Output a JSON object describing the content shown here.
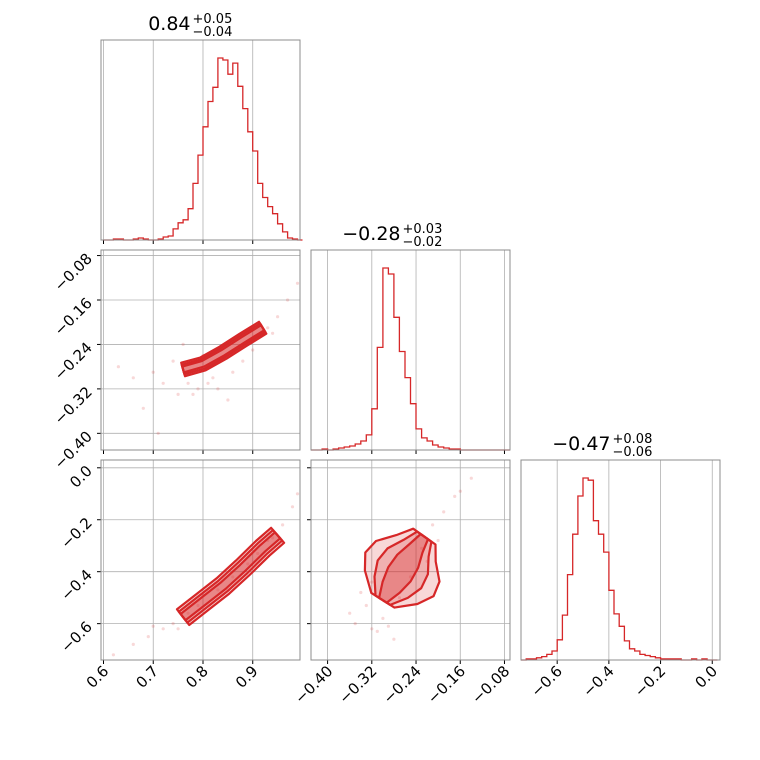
{
  "chart_data": {
    "type": "corner",
    "color": "#d62728",
    "parameters": [
      {
        "title_value": "0.84",
        "title_plus": "+0.05",
        "title_minus": "−0.04",
        "range": [
          0.595,
          0.995
        ],
        "ticks": [
          0.6,
          0.7,
          0.8,
          0.9
        ],
        "tick_labels": [
          "0.6",
          "0.7",
          "0.8",
          "0.9"
        ]
      },
      {
        "title_value": "−0.28",
        "title_plus": "+0.03",
        "title_minus": "−0.02",
        "range": [
          -0.43,
          -0.07
        ],
        "ticks": [
          -0.4,
          -0.32,
          -0.24,
          -0.16,
          -0.08
        ],
        "tick_labels": [
          "−0.40",
          "−0.32",
          "−0.24",
          "−0.16",
          "−0.08"
        ]
      },
      {
        "title_value": "−0.47",
        "title_plus": "+0.08",
        "title_minus": "−0.06",
        "range": [
          -0.74,
          0.03
        ],
        "ticks": [
          -0.6,
          -0.4,
          -0.2,
          0.0
        ],
        "tick_labels": [
          "−0.6",
          "−0.4",
          "−0.2",
          "0.0"
        ]
      }
    ],
    "histograms": [
      {
        "param": 0,
        "bin_edges": [
          0.6,
          0.61,
          0.62,
          0.63,
          0.64,
          0.65,
          0.66,
          0.67,
          0.68,
          0.69,
          0.7,
          0.71,
          0.72,
          0.73,
          0.74,
          0.75,
          0.76,
          0.77,
          0.78,
          0.79,
          0.8,
          0.81,
          0.82,
          0.83,
          0.84,
          0.85,
          0.86,
          0.87,
          0.88,
          0.89,
          0.9,
          0.91,
          0.92,
          0.93,
          0.94,
          0.95,
          0.96,
          0.97,
          0.98,
          0.99,
          1.0
        ],
        "counts": [
          0,
          0,
          1,
          1,
          0,
          0,
          1,
          2,
          1,
          0,
          0,
          1,
          3,
          4,
          11,
          17,
          20,
          31,
          56,
          84,
          112,
          137,
          151,
          180,
          178,
          164,
          175,
          152,
          130,
          107,
          88,
          56,
          42,
          33,
          26,
          16,
          8,
          2,
          1,
          0
        ]
      },
      {
        "param": 1,
        "bin_edges": [
          -0.43,
          -0.42,
          -0.41,
          -0.4,
          -0.39,
          -0.38,
          -0.37,
          -0.36,
          -0.35,
          -0.34,
          -0.33,
          -0.32,
          -0.31,
          -0.3,
          -0.29,
          -0.28,
          -0.27,
          -0.26,
          -0.25,
          -0.24,
          -0.23,
          -0.22,
          -0.21,
          -0.2,
          -0.19,
          -0.18,
          -0.17,
          -0.16,
          -0.15,
          -0.14,
          -0.13,
          -0.12,
          -0.11,
          -0.1,
          -0.09,
          -0.08,
          -0.07
        ],
        "counts": [
          0,
          0,
          1,
          0,
          1,
          2,
          3,
          4,
          6,
          9,
          15,
          41,
          102,
          181,
          175,
          132,
          98,
          72,
          46,
          21,
          12,
          9,
          5,
          3,
          2,
          1,
          1,
          0,
          0,
          0,
          0,
          0,
          0,
          0,
          0,
          0
        ]
      },
      {
        "param": 2,
        "bin_edges": [
          -0.74,
          -0.72,
          -0.7,
          -0.68,
          -0.66,
          -0.64,
          -0.62,
          -0.6,
          -0.58,
          -0.56,
          -0.54,
          -0.52,
          -0.5,
          -0.48,
          -0.46,
          -0.44,
          -0.42,
          -0.4,
          -0.38,
          -0.36,
          -0.34,
          -0.32,
          -0.3,
          -0.28,
          -0.26,
          -0.24,
          -0.22,
          -0.2,
          -0.18,
          -0.16,
          -0.14,
          -0.12,
          -0.1,
          -0.08,
          -0.06,
          -0.04,
          -0.02,
          0.0,
          0.02
        ],
        "counts": [
          0,
          1,
          1,
          2,
          3,
          5,
          8,
          18,
          40,
          76,
          112,
          146,
          162,
          160,
          124,
          112,
          96,
          62,
          41,
          30,
          17,
          10,
          8,
          5,
          4,
          3,
          2,
          1,
          1,
          1,
          1,
          0,
          0,
          1,
          0,
          1,
          0,
          0
        ]
      }
    ],
    "pairs": [
      {
        "x_param": 0,
        "y_param": 1,
        "ridge": [
          [
            0.76,
            -0.285
          ],
          [
            0.8,
            -0.275
          ],
          [
            0.84,
            -0.255
          ],
          [
            0.88,
            -0.232
          ],
          [
            0.92,
            -0.21
          ]
        ],
        "levels": [
          {
            "name": "outer",
            "width": 0.014
          },
          {
            "name": "middle",
            "width": 0.01
          },
          {
            "name": "inner",
            "width": 0.006
          }
        ],
        "scatter": [
          [
            0.63,
            -0.28
          ],
          [
            0.66,
            -0.3
          ],
          [
            0.7,
            -0.29
          ],
          [
            0.72,
            -0.31
          ],
          [
            0.74,
            -0.27
          ],
          [
            0.75,
            -0.33
          ],
          [
            0.77,
            -0.31
          ],
          [
            0.78,
            -0.33
          ],
          [
            0.79,
            -0.32
          ],
          [
            0.81,
            -0.31
          ],
          [
            0.82,
            -0.3
          ],
          [
            0.83,
            -0.32
          ],
          [
            0.86,
            -0.29
          ],
          [
            0.88,
            -0.27
          ],
          [
            0.9,
            -0.25
          ],
          [
            0.93,
            -0.21
          ],
          [
            0.95,
            -0.19
          ],
          [
            0.97,
            -0.16
          ],
          [
            0.99,
            -0.13
          ],
          [
            0.68,
            -0.355
          ],
          [
            0.71,
            -0.4
          ],
          [
            0.85,
            -0.34
          ],
          [
            0.76,
            -0.24
          ],
          [
            0.8,
            -0.26
          ],
          [
            0.94,
            -0.22
          ]
        ]
      },
      {
        "x_param": 0,
        "y_param": 2,
        "ridge": [
          [
            0.76,
            -0.575
          ],
          [
            0.8,
            -0.515
          ],
          [
            0.84,
            -0.455
          ],
          [
            0.88,
            -0.385
          ],
          [
            0.92,
            -0.31
          ],
          [
            0.95,
            -0.26
          ]
        ],
        "levels": [
          {
            "name": "outer",
            "width": 0.02
          },
          {
            "name": "middle",
            "width": 0.014
          },
          {
            "name": "inner",
            "width": 0.008
          }
        ],
        "scatter": [
          [
            0.62,
            -0.72
          ],
          [
            0.66,
            -0.68
          ],
          [
            0.69,
            -0.65
          ],
          [
            0.72,
            -0.62
          ],
          [
            0.74,
            -0.6
          ],
          [
            0.77,
            -0.56
          ],
          [
            0.79,
            -0.53
          ],
          [
            0.83,
            -0.47
          ],
          [
            0.86,
            -0.42
          ],
          [
            0.89,
            -0.37
          ],
          [
            0.91,
            -0.33
          ],
          [
            0.94,
            -0.27
          ],
          [
            0.96,
            -0.22
          ],
          [
            0.98,
            -0.15
          ],
          [
            0.99,
            -0.1
          ],
          [
            0.7,
            -0.61
          ],
          [
            0.75,
            -0.62
          ],
          [
            0.8,
            -0.49
          ],
          [
            0.85,
            -0.47
          ],
          [
            0.93,
            -0.28
          ]
        ]
      },
      {
        "x_param": 1,
        "y_param": 2,
        "ridge": [
          [
            -0.3,
            -0.51
          ],
          [
            -0.285,
            -0.46
          ],
          [
            -0.27,
            -0.41
          ],
          [
            -0.255,
            -0.36
          ],
          [
            -0.24,
            -0.31
          ],
          [
            -0.225,
            -0.265
          ]
        ],
        "levels": [
          {
            "name": "outer",
            "width": 0.055
          },
          {
            "name": "middle",
            "width": 0.035
          },
          {
            "name": "inner",
            "width": 0.018
          }
        ],
        "scatter": [
          [
            -0.36,
            -0.56
          ],
          [
            -0.35,
            -0.6
          ],
          [
            -0.34,
            -0.48
          ],
          [
            -0.33,
            -0.53
          ],
          [
            -0.32,
            -0.62
          ],
          [
            -0.31,
            -0.63
          ],
          [
            -0.3,
            -0.58
          ],
          [
            -0.29,
            -0.61
          ],
          [
            -0.27,
            -0.5
          ],
          [
            -0.25,
            -0.42
          ],
          [
            -0.23,
            -0.31
          ],
          [
            -0.21,
            -0.22
          ],
          [
            -0.19,
            -0.17
          ],
          [
            -0.17,
            -0.11
          ],
          [
            -0.16,
            -0.09
          ],
          [
            -0.14,
            -0.04
          ],
          [
            -0.2,
            -0.28
          ],
          [
            -0.22,
            -0.36
          ],
          [
            -0.32,
            -0.44
          ],
          [
            -0.28,
            -0.66
          ]
        ]
      }
    ]
  }
}
